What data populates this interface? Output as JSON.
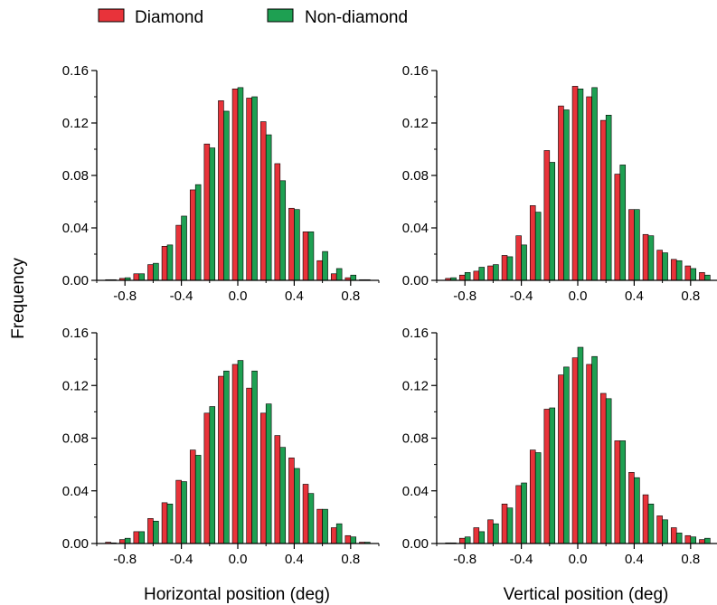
{
  "legend": {
    "position": "top-left",
    "items": [
      {
        "label": "Diamond",
        "color": "#e8333a"
      },
      {
        "label": "Non-diamond",
        "color": "#1ea052"
      }
    ]
  },
  "ylabel": "Frequency",
  "xlabels": [
    "Horizontal position (deg)",
    "Vertical position (deg)"
  ],
  "chart_data": [
    {
      "type": "bar",
      "panel": "top-left",
      "xlabel": "Horizontal position (deg)",
      "ylabel": "Frequency",
      "xlim": [
        -1.0,
        1.0
      ],
      "ylim": [
        0,
        0.16
      ],
      "x_ticks": [
        "-0.8",
        "-0.4",
        "0.0",
        "0.4",
        "0.8"
      ],
      "y_ticks": [
        "0.00",
        "0.04",
        "0.08",
        "0.12",
        "0.16"
      ],
      "bin_centers": [
        -0.9,
        -0.8,
        -0.7,
        -0.6,
        -0.5,
        -0.4,
        -0.3,
        -0.2,
        -0.1,
        0.0,
        0.1,
        0.2,
        0.3,
        0.4,
        0.5,
        0.6,
        0.7,
        0.8,
        0.9
      ],
      "series": [
        {
          "name": "Diamond",
          "values": [
            0.0005,
            0.0015,
            0.005,
            0.012,
            0.026,
            0.042,
            0.069,
            0.104,
            0.137,
            0.146,
            0.139,
            0.121,
            0.089,
            0.055,
            0.037,
            0.015,
            0.005,
            0.002,
            0.0005
          ]
        },
        {
          "name": "Non-diamond",
          "values": [
            0.0005,
            0.002,
            0.005,
            0.013,
            0.027,
            0.049,
            0.073,
            0.101,
            0.129,
            0.147,
            0.14,
            0.111,
            0.076,
            0.054,
            0.037,
            0.022,
            0.009,
            0.004,
            0.0005
          ]
        }
      ]
    },
    {
      "type": "bar",
      "panel": "top-right",
      "xlabel": "Vertical position (deg)",
      "ylabel": "Frequency",
      "xlim": [
        -1.0,
        1.0
      ],
      "ylim": [
        0,
        0.16
      ],
      "x_ticks": [
        "-0.8",
        "-0.4",
        "0.0",
        "0.4",
        "0.8"
      ],
      "y_ticks": [
        "0.00",
        "0.04",
        "0.08",
        "0.12",
        "0.16"
      ],
      "bin_centers": [
        -0.9,
        -0.8,
        -0.7,
        -0.6,
        -0.5,
        -0.4,
        -0.3,
        -0.2,
        -0.1,
        0.0,
        0.1,
        0.2,
        0.3,
        0.4,
        0.5,
        0.6,
        0.7,
        0.8,
        0.9
      ],
      "series": [
        {
          "name": "Diamond",
          "values": [
            0.0015,
            0.004,
            0.007,
            0.011,
            0.019,
            0.034,
            0.057,
            0.099,
            0.133,
            0.148,
            0.14,
            0.122,
            0.081,
            0.054,
            0.035,
            0.023,
            0.016,
            0.011,
            0.006
          ]
        },
        {
          "name": "Non-diamond",
          "values": [
            0.002,
            0.006,
            0.01,
            0.012,
            0.018,
            0.027,
            0.052,
            0.09,
            0.13,
            0.146,
            0.147,
            0.126,
            0.088,
            0.054,
            0.034,
            0.021,
            0.015,
            0.009,
            0.004
          ]
        }
      ]
    },
    {
      "type": "bar",
      "panel": "bottom-left",
      "xlabel": "Horizontal position (deg)",
      "ylabel": "Frequency",
      "xlim": [
        -1.0,
        1.0
      ],
      "ylim": [
        0,
        0.16
      ],
      "x_ticks": [
        "-0.8",
        "-0.4",
        "0.0",
        "0.4",
        "0.8"
      ],
      "y_ticks": [
        "0.00",
        "0.04",
        "0.08",
        "0.12",
        "0.16"
      ],
      "bin_centers": [
        -0.9,
        -0.8,
        -0.7,
        -0.6,
        -0.5,
        -0.4,
        -0.3,
        -0.2,
        -0.1,
        0.0,
        0.1,
        0.2,
        0.3,
        0.4,
        0.5,
        0.6,
        0.7,
        0.8,
        0.9
      ],
      "series": [
        {
          "name": "Diamond",
          "values": [
            0.001,
            0.003,
            0.009,
            0.019,
            0.031,
            0.048,
            0.071,
            0.099,
            0.127,
            0.136,
            0.118,
            0.099,
            0.082,
            0.065,
            0.045,
            0.026,
            0.012,
            0.006,
            0.001
          ]
        },
        {
          "name": "Non-diamond",
          "values": [
            0.0005,
            0.004,
            0.009,
            0.017,
            0.03,
            0.047,
            0.067,
            0.104,
            0.131,
            0.139,
            0.131,
            0.106,
            0.073,
            0.057,
            0.038,
            0.026,
            0.015,
            0.005,
            0.001
          ]
        }
      ]
    },
    {
      "type": "bar",
      "panel": "bottom-right",
      "xlabel": "Vertical position (deg)",
      "ylabel": "Frequency",
      "xlim": [
        -1.0,
        1.0
      ],
      "ylim": [
        0,
        0.16
      ],
      "x_ticks": [
        "-0.8",
        "-0.4",
        "0.0",
        "0.4",
        "0.8"
      ],
      "y_ticks": [
        "0.00",
        "0.04",
        "0.08",
        "0.12",
        "0.16"
      ],
      "bin_centers": [
        -0.9,
        -0.8,
        -0.7,
        -0.6,
        -0.5,
        -0.4,
        -0.3,
        -0.2,
        -0.1,
        0.0,
        0.1,
        0.2,
        0.3,
        0.4,
        0.5,
        0.6,
        0.7,
        0.8,
        0.9
      ],
      "series": [
        {
          "name": "Diamond",
          "values": [
            0.0005,
            0.004,
            0.012,
            0.018,
            0.03,
            0.044,
            0.071,
            0.102,
            0.128,
            0.141,
            0.136,
            0.114,
            0.078,
            0.054,
            0.037,
            0.021,
            0.012,
            0.006,
            0.003
          ]
        },
        {
          "name": "Non-diamond",
          "values": [
            0.0005,
            0.005,
            0.009,
            0.015,
            0.027,
            0.046,
            0.069,
            0.103,
            0.134,
            0.149,
            0.142,
            0.11,
            0.078,
            0.05,
            0.03,
            0.018,
            0.008,
            0.005,
            0.004
          ]
        }
      ]
    }
  ]
}
